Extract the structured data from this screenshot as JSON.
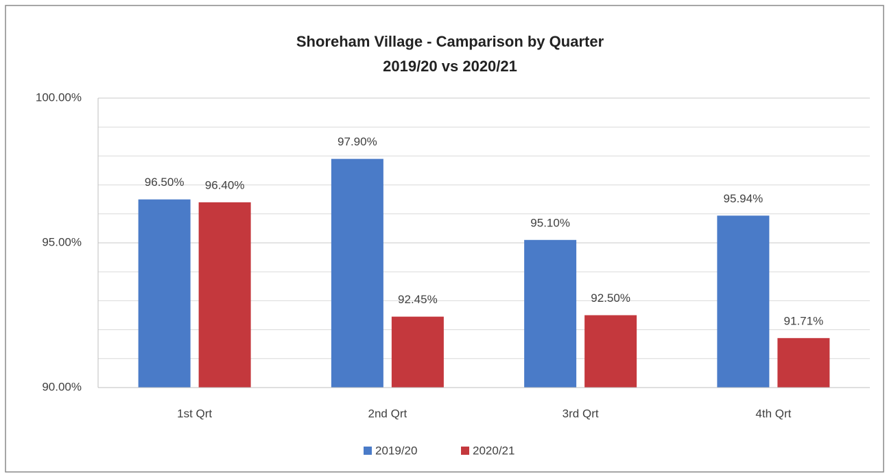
{
  "chart_data": {
    "type": "bar",
    "title": "Shoreham Village - Camparison by Quarter",
    "subtitle": "2019/20 vs 2020/21",
    "categories": [
      "1st Qrt",
      "2nd Qrt",
      "3rd Qrt",
      "4th Qrt"
    ],
    "series": [
      {
        "name": "2019/20",
        "color": "#4a7bc8",
        "values": [
          96.5,
          97.9,
          95.1,
          95.94
        ],
        "value_labels": [
          "96.50%",
          "97.90%",
          "95.10%",
          "95.94%"
        ]
      },
      {
        "name": "2020/21",
        "color": "#c4383d",
        "values": [
          96.4,
          92.45,
          92.5,
          91.71
        ],
        "value_labels": [
          "96.40%",
          "92.45%",
          "92.50%",
          "91.71%"
        ]
      }
    ],
    "ylim": [
      90,
      100
    ],
    "yticks": [
      {
        "value": 90,
        "label": "90.00%"
      },
      {
        "value": 95,
        "label": "95.00%"
      },
      {
        "value": 100,
        "label": "100.00%"
      }
    ],
    "yminor": [
      91,
      92,
      93,
      94,
      96,
      97,
      98,
      99
    ],
    "grid": true,
    "legend": "bottom"
  }
}
